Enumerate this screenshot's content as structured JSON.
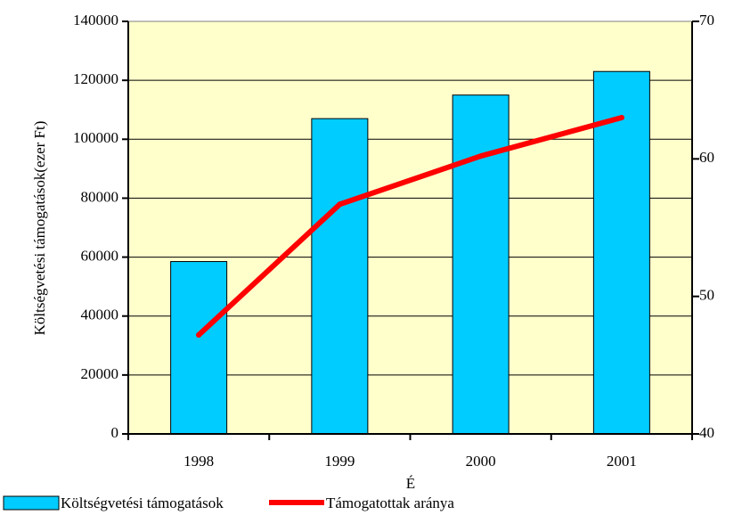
{
  "chart_data": {
    "type": "bar",
    "categories": [
      "1998",
      "1999",
      "2000",
      "2001"
    ],
    "series": [
      {
        "name": "Költségvetési támogatások",
        "type": "bar",
        "axis": "left",
        "color": "#00ccff",
        "values": [
          58500,
          107000,
          115000,
          123000
        ]
      },
      {
        "name": "Támogatottak aránya",
        "type": "line",
        "axis": "right",
        "color": "#ff0000",
        "values": [
          47.2,
          56.7,
          60.2,
          63.0
        ]
      }
    ],
    "title": "",
    "ylabel": "Költségvetési támogatások(ezer Ft)",
    "xlabel": "É",
    "ylim": [
      0,
      140000
    ],
    "y_ticks": [
      "0",
      "20000",
      "40000",
      "60000",
      "80000",
      "100000",
      "120000",
      "140000"
    ],
    "y2lim": [
      40,
      70
    ],
    "y2_ticks": [
      "40",
      "50",
      "60",
      "70"
    ],
    "plot_background": "#ffffcc",
    "grid": true,
    "legend_position": "bottom-left"
  }
}
